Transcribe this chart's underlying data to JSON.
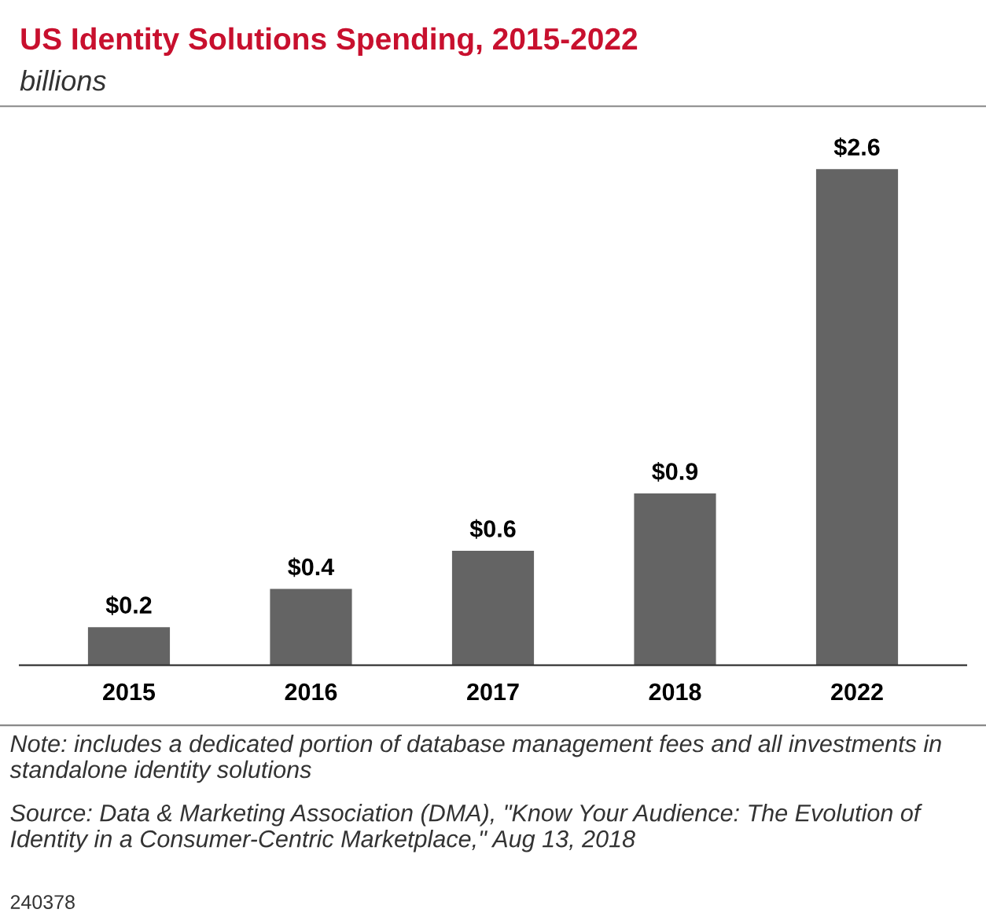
{
  "chart_data": {
    "type": "bar",
    "title": "US Identity Solutions Spending, 2015-2022",
    "subtitle": "billions",
    "categories": [
      "2015",
      "2016",
      "2017",
      "2018",
      "2022"
    ],
    "values": [
      0.2,
      0.4,
      0.6,
      0.9,
      2.6
    ],
    "value_labels": [
      "$0.2",
      "$0.4",
      "$0.6",
      "$0.9",
      "$2.6"
    ],
    "color": "#646464",
    "annotations": [
      "Note: includes a dedicated portion of database management fees and all investments in standalone identity solutions",
      "Source: Data & Marketing Association (DMA), \"Know Your Audience: The Evolution of Identity in a Consumer-Centric Marketplace,\" Aug 13, 2018",
      "240378"
    ],
    "grid": false,
    "legend": false
  }
}
